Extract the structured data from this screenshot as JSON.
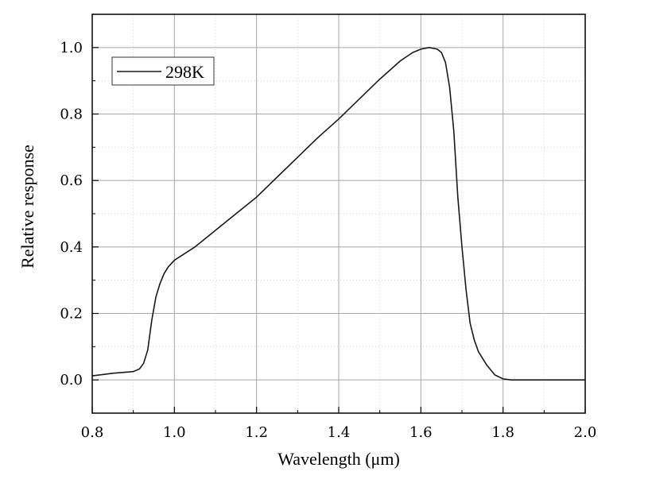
{
  "chart_data": {
    "type": "line",
    "title": "",
    "xlabel": "Wavelength (μm)",
    "ylabel": "Relative response",
    "xlim": [
      0.8,
      2.0
    ],
    "ylim": [
      -0.1,
      1.1
    ],
    "x_ticks": [
      0.8,
      1.0,
      1.2,
      1.4,
      1.6,
      1.8,
      2.0
    ],
    "x_tick_labels": [
      "0.8",
      "1.0",
      "1.2",
      "1.4",
      "1.6",
      "1.8",
      "2.0"
    ],
    "y_ticks": [
      0.0,
      0.2,
      0.4,
      0.6,
      0.8,
      1.0
    ],
    "y_tick_labels": [
      "0.0",
      "0.2",
      "0.4",
      "0.6",
      "0.8",
      "1.0"
    ],
    "grid": true,
    "legend_position": "top-left",
    "series": [
      {
        "name": "298K",
        "color": "#1a1a1a",
        "x": [
          0.8,
          0.85,
          0.9,
          0.915,
          0.925,
          0.935,
          0.945,
          0.955,
          0.965,
          0.975,
          0.985,
          1.0,
          1.05,
          1.1,
          1.15,
          1.2,
          1.25,
          1.3,
          1.35,
          1.4,
          1.45,
          1.5,
          1.55,
          1.58,
          1.6,
          1.62,
          1.64,
          1.65,
          1.66,
          1.67,
          1.68,
          1.69,
          1.7,
          1.71,
          1.72,
          1.73,
          1.74,
          1.76,
          1.78,
          1.8,
          1.82,
          1.9,
          2.0
        ],
        "y": [
          0.012,
          0.02,
          0.025,
          0.033,
          0.05,
          0.09,
          0.18,
          0.25,
          0.29,
          0.32,
          0.34,
          0.36,
          0.4,
          0.45,
          0.5,
          0.55,
          0.61,
          0.67,
          0.73,
          0.785,
          0.845,
          0.905,
          0.96,
          0.985,
          0.995,
          1.0,
          0.995,
          0.985,
          0.955,
          0.88,
          0.75,
          0.55,
          0.4,
          0.27,
          0.17,
          0.12,
          0.085,
          0.045,
          0.015,
          0.003,
          0.0,
          0.0,
          0.0
        ]
      }
    ]
  }
}
